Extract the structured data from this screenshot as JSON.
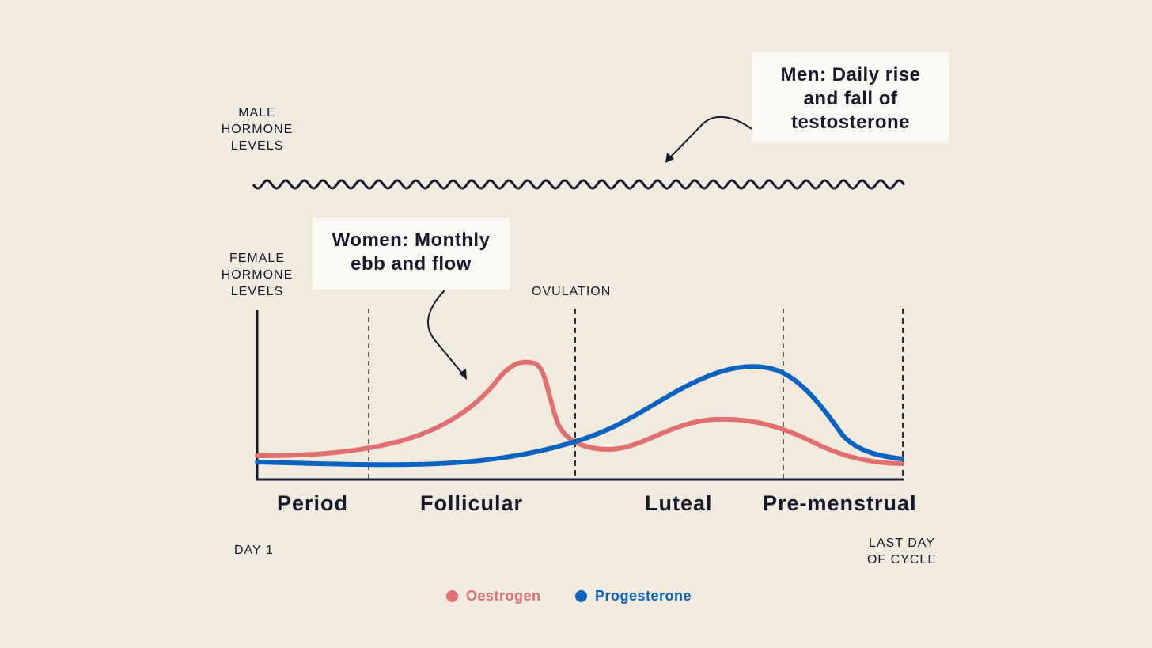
{
  "labels": {
    "male_axis": "MALE\nHORMONE\nLEVELS",
    "female_axis": "FEMALE\nHORMONE\nLEVELS",
    "ovulation": "OVULATION",
    "day1": "DAY 1",
    "last_day": "LAST DAY\nOF CYCLE"
  },
  "callouts": {
    "men": "Men: Daily rise\nand fall of\ntestosterone",
    "women": "Women: Monthly\nebb and flow"
  },
  "phases": [
    "Period",
    "Follicular",
    "Luteal",
    "Pre-menstrual"
  ],
  "legend": [
    {
      "name": "Oestrogen",
      "color": "#e07070"
    },
    {
      "name": "Progesterone",
      "color": "#0b63c0"
    }
  ],
  "colors": {
    "background": "#f1ebdf",
    "ink": "#16192b",
    "oestrogen": "#e07070",
    "progesterone": "#0b63c0"
  }
}
